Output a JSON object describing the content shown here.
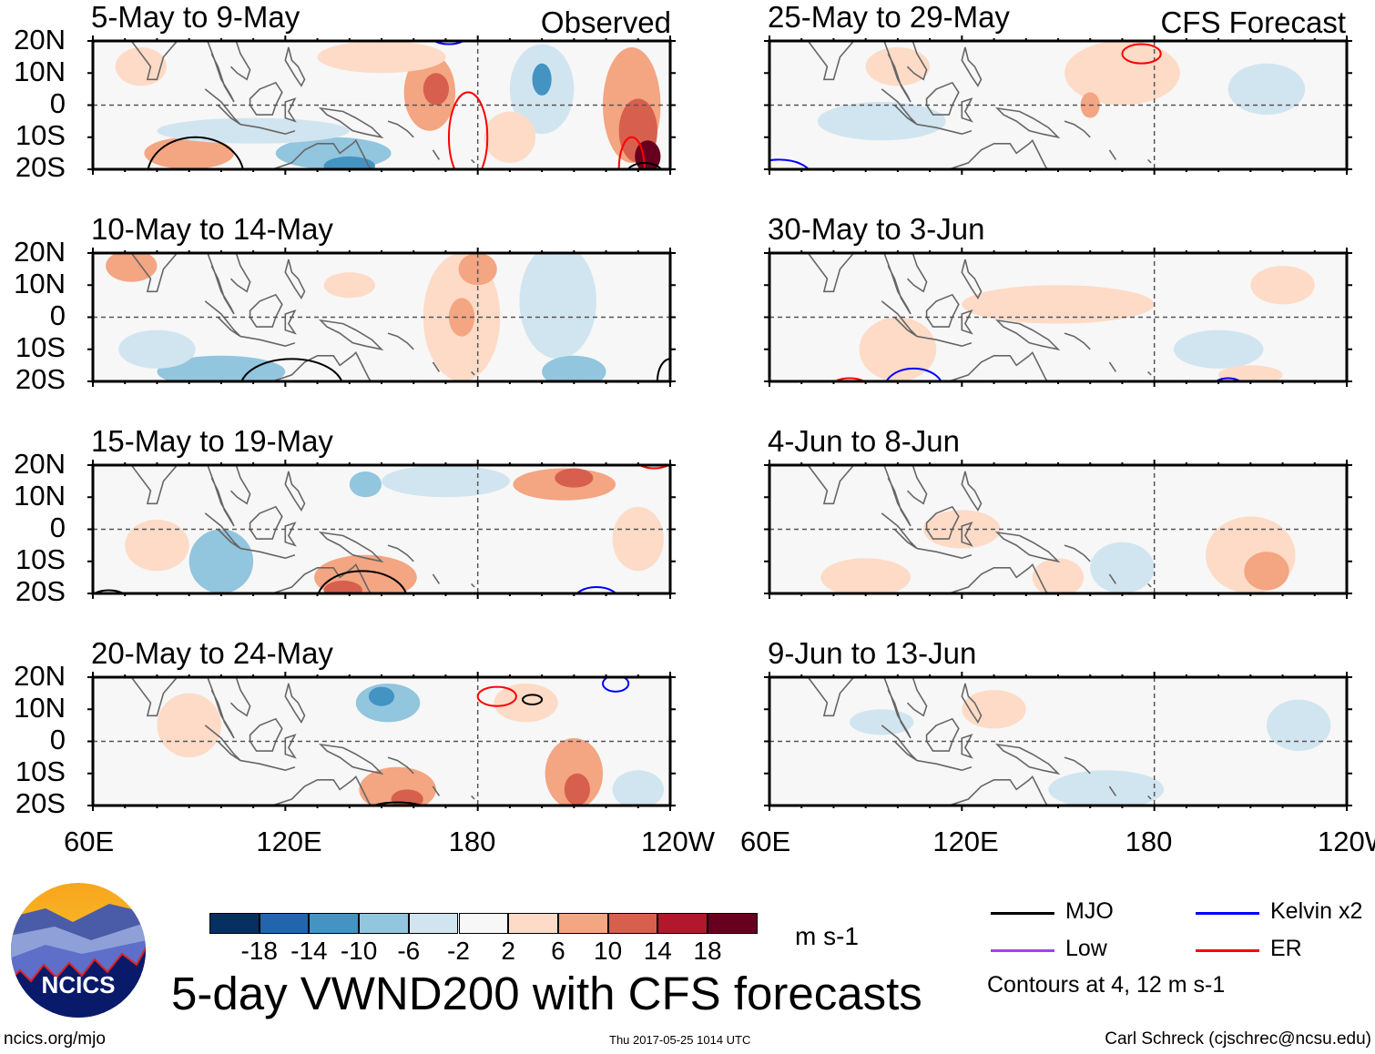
{
  "figure": {
    "title": "5-day VWND200 with CFS forecasts",
    "units": "m s-1",
    "left_tag": "Observed",
    "right_tag": "CFS Forecast",
    "site": "ncics.org/mjo",
    "timestamp": "Thu 2017-05-25 1014 UTC",
    "author": "Carl Schreck (cjschrec@ncsu.edu)",
    "logo_text": "NCICS"
  },
  "axes": {
    "lat_labels": [
      "20N",
      "10N",
      "0",
      "10S",
      "20S"
    ],
    "lon_labels": [
      "60E",
      "120E",
      "180",
      "120W"
    ],
    "lon_range": [
      60,
      240
    ],
    "lat_range": [
      -20,
      20
    ]
  },
  "colorbar": {
    "colors": [
      "#053061",
      "#2166ac",
      "#4393c3",
      "#92c5de",
      "#d1e5f0",
      "#f7f7f7",
      "#fddbc7",
      "#f4a582",
      "#d6604d",
      "#b2182b",
      "#67001f"
    ],
    "labels": [
      "-18",
      "-14",
      "-10",
      "-6",
      "-2",
      "2",
      "6",
      "10",
      "14",
      "18"
    ],
    "bounds": [
      -18,
      -14,
      -10,
      -6,
      -2,
      2,
      6,
      10,
      14,
      18
    ]
  },
  "legend": {
    "items": [
      {
        "label": "MJO",
        "color": "#000000"
      },
      {
        "label": "Kelvin x2",
        "color": "#0000ff"
      },
      {
        "label": "Low",
        "color": "#a040ff"
      },
      {
        "label": "ER",
        "color": "#ff0000"
      }
    ],
    "note": "Contours at 4, 12 m s-1"
  },
  "chart_data": {
    "type": "heatmap",
    "variable": "200 hPa meridional wind anomaly",
    "panels": [
      {
        "title": "5-May to 9-May",
        "column": "observed",
        "anomalies": [
          {
            "lon": 75,
            "lat": 12,
            "dlon": 8,
            "dlat": 6,
            "value": 3
          },
          {
            "lon": 90,
            "lat": -15,
            "dlon": 14,
            "dlat": 5,
            "value": 7
          },
          {
            "lon": 135,
            "lat": -15,
            "dlon": 18,
            "dlat": 5,
            "value": -7
          },
          {
            "lon": 140,
            "lat": -19,
            "dlon": 8,
            "dlat": 3,
            "value": -11
          },
          {
            "lon": 110,
            "lat": -8,
            "dlon": 30,
            "dlat": 4,
            "value": -3
          },
          {
            "lon": 165,
            "lat": 4,
            "dlon": 8,
            "dlat": 12,
            "value": 7
          },
          {
            "lon": 167,
            "lat": 5,
            "dlon": 4,
            "dlat": 5,
            "value": 11
          },
          {
            "lon": 150,
            "lat": 15,
            "dlon": 20,
            "dlat": 5,
            "value": 3
          },
          {
            "lon": 200,
            "lat": 5,
            "dlon": 10,
            "dlat": 14,
            "value": -5
          },
          {
            "lon": 200,
            "lat": 8,
            "dlon": 3,
            "dlat": 5,
            "value": -11
          },
          {
            "lon": 228,
            "lat": 0,
            "dlon": 9,
            "dlat": 18,
            "value": 7
          },
          {
            "lon": 230,
            "lat": -8,
            "dlon": 6,
            "dlat": 10,
            "value": 11
          },
          {
            "lon": 233,
            "lat": -16,
            "dlon": 4,
            "dlat": 5,
            "value": 20
          },
          {
            "lon": 190,
            "lat": -10,
            "dlon": 8,
            "dlat": 8,
            "value": 3
          }
        ],
        "contours": [
          {
            "type": "MJO",
            "lon": 92,
            "lat": -22,
            "dlon": 15,
            "dlat": 12
          },
          {
            "type": "Kelvin",
            "lon": 171,
            "lat": 22,
            "dlon": 6,
            "dlat": 3
          },
          {
            "type": "ER",
            "lon": 177,
            "lat": -10,
            "dlon": 6,
            "dlat": 14
          },
          {
            "type": "ER",
            "lon": 228,
            "lat": -20,
            "dlon": 4,
            "dlat": 10
          },
          {
            "type": "MJO",
            "lon": 232,
            "lat": -22,
            "dlon": 6,
            "dlat": 4
          }
        ]
      },
      {
        "title": "10-May to 14-May",
        "column": "observed",
        "anomalies": [
          {
            "lon": 72,
            "lat": 16,
            "dlon": 8,
            "dlat": 5,
            "value": 8
          },
          {
            "lon": 100,
            "lat": -17,
            "dlon": 20,
            "dlat": 5,
            "value": -7
          },
          {
            "lon": 80,
            "lat": -10,
            "dlon": 12,
            "dlat": 6,
            "value": -3
          },
          {
            "lon": 175,
            "lat": 0,
            "dlon": 12,
            "dlat": 20,
            "value": 3
          },
          {
            "lon": 175,
            "lat": 0,
            "dlon": 4,
            "dlat": 6,
            "value": 7
          },
          {
            "lon": 180,
            "lat": 15,
            "dlon": 6,
            "dlat": 5,
            "value": 7
          },
          {
            "lon": 205,
            "lat": 5,
            "dlon": 12,
            "dlat": 18,
            "value": -4
          },
          {
            "lon": 210,
            "lat": -17,
            "dlon": 10,
            "dlat": 5,
            "value": -8
          },
          {
            "lon": 140,
            "lat": 10,
            "dlon": 8,
            "dlat": 4,
            "value": 4
          }
        ],
        "contours": [
          {
            "type": "MJO",
            "lon": 122,
            "lat": -22,
            "dlon": 16,
            "dlat": 9
          },
          {
            "type": "MJO",
            "lon": 240,
            "lat": -20,
            "dlon": 4,
            "dlat": 7
          }
        ]
      },
      {
        "title": "15-May to 19-May",
        "column": "observed",
        "anomalies": [
          {
            "lon": 145,
            "lat": -15,
            "dlon": 16,
            "dlat": 7,
            "value": 7
          },
          {
            "lon": 138,
            "lat": -19,
            "dlon": 6,
            "dlat": 3,
            "value": 11
          },
          {
            "lon": 100,
            "lat": -10,
            "dlon": 10,
            "dlat": 10,
            "value": -6
          },
          {
            "lon": 145,
            "lat": 14,
            "dlon": 5,
            "dlat": 4,
            "value": -9
          },
          {
            "lon": 170,
            "lat": 15,
            "dlon": 20,
            "dlat": 5,
            "value": -3
          },
          {
            "lon": 207,
            "lat": 14,
            "dlon": 16,
            "dlat": 5,
            "value": 7
          },
          {
            "lon": 210,
            "lat": 16,
            "dlon": 6,
            "dlat": 3,
            "value": 11
          },
          {
            "lon": 230,
            "lat": -3,
            "dlon": 8,
            "dlat": 10,
            "value": 4
          },
          {
            "lon": 80,
            "lat": -5,
            "dlon": 10,
            "dlat": 8,
            "value": 3
          }
        ],
        "contours": [
          {
            "type": "MJO",
            "lon": 144,
            "lat": -22,
            "dlon": 14,
            "dlat": 9
          },
          {
            "type": "Kelvin",
            "lon": 217,
            "lat": -22,
            "dlon": 7,
            "dlat": 4
          },
          {
            "type": "ER",
            "lon": 235,
            "lat": 21,
            "dlon": 5,
            "dlat": 2
          },
          {
            "type": "MJO",
            "lon": 65,
            "lat": -22,
            "dlon": 6,
            "dlat": 3
          }
        ]
      },
      {
        "title": "20-May to 24-May",
        "column": "observed",
        "anomalies": [
          {
            "lon": 155,
            "lat": -15,
            "dlon": 12,
            "dlat": 7,
            "value": 7
          },
          {
            "lon": 158,
            "lat": -18,
            "dlon": 5,
            "dlat": 3,
            "value": 11
          },
          {
            "lon": 152,
            "lat": 12,
            "dlon": 10,
            "dlat": 6,
            "value": -6
          },
          {
            "lon": 150,
            "lat": 14,
            "dlon": 4,
            "dlat": 3,
            "value": -11
          },
          {
            "lon": 210,
            "lat": -10,
            "dlon": 9,
            "dlat": 11,
            "value": 7
          },
          {
            "lon": 211,
            "lat": -15,
            "dlon": 4,
            "dlat": 5,
            "value": 12
          },
          {
            "lon": 195,
            "lat": 12,
            "dlon": 10,
            "dlat": 6,
            "value": 3
          },
          {
            "lon": 90,
            "lat": 5,
            "dlon": 10,
            "dlat": 10,
            "value": 3
          },
          {
            "lon": 230,
            "lat": -15,
            "dlon": 8,
            "dlat": 6,
            "value": -4
          }
        ],
        "contours": [
          {
            "type": "ER",
            "lon": 186,
            "lat": 14,
            "dlon": 6,
            "dlat": 3
          },
          {
            "type": "MJO",
            "lon": 197,
            "lat": 13,
            "dlon": 3,
            "dlat": 1.5
          },
          {
            "type": "Kelvin",
            "lon": 223,
            "lat": 18,
            "dlon": 4,
            "dlat": 2.5
          },
          {
            "type": "MJO",
            "lon": 155,
            "lat": -22,
            "dlon": 10,
            "dlat": 3
          }
        ]
      },
      {
        "title": "25-May to 29-May",
        "column": "forecast",
        "anomalies": [
          {
            "lon": 170,
            "lat": 10,
            "dlon": 18,
            "dlat": 10,
            "value": 3
          },
          {
            "lon": 160,
            "lat": 0,
            "dlon": 3,
            "dlat": 4,
            "value": 7
          },
          {
            "lon": 95,
            "lat": -5,
            "dlon": 20,
            "dlat": 6,
            "value": -3
          },
          {
            "lon": 215,
            "lat": 5,
            "dlon": 12,
            "dlat": 8,
            "value": -3
          },
          {
            "lon": 100,
            "lat": 12,
            "dlon": 10,
            "dlat": 6,
            "value": 3
          }
        ],
        "contours": [
          {
            "type": "ER",
            "lon": 176,
            "lat": 16,
            "dlon": 6,
            "dlat": 3
          },
          {
            "type": "Kelvin",
            "lon": 63,
            "lat": -22,
            "dlon": 10,
            "dlat": 5
          },
          {
            "type": "ER",
            "lon": 100,
            "lat": -22,
            "dlon": 4,
            "dlat": 2
          }
        ]
      },
      {
        "title": "30-May to 3-Jun",
        "column": "forecast",
        "anomalies": [
          {
            "lon": 100,
            "lat": -10,
            "dlon": 12,
            "dlat": 10,
            "value": 3
          },
          {
            "lon": 150,
            "lat": 4,
            "dlon": 30,
            "dlat": 6,
            "value": 3
          },
          {
            "lon": 200,
            "lat": -10,
            "dlon": 14,
            "dlat": 6,
            "value": -3
          },
          {
            "lon": 220,
            "lat": 10,
            "dlon": 10,
            "dlat": 6,
            "value": 3
          },
          {
            "lon": 210,
            "lat": -18,
            "dlon": 10,
            "dlat": 3,
            "value": 3
          }
        ],
        "contours": [
          {
            "type": "ER",
            "lon": 85,
            "lat": -22,
            "dlon": 6,
            "dlat": 3
          },
          {
            "type": "Kelvin",
            "lon": 105,
            "lat": -22,
            "dlon": 9,
            "dlat": 6
          },
          {
            "type": "Kelvin",
            "lon": 203,
            "lat": -22,
            "dlon": 5,
            "dlat": 3
          }
        ]
      },
      {
        "title": "4-Jun to 8-Jun",
        "column": "forecast",
        "anomalies": [
          {
            "lon": 210,
            "lat": -8,
            "dlon": 14,
            "dlat": 12,
            "value": 5
          },
          {
            "lon": 215,
            "lat": -13,
            "dlon": 7,
            "dlat": 6,
            "value": 8
          },
          {
            "lon": 120,
            "lat": 0,
            "dlon": 12,
            "dlat": 6,
            "value": 3
          },
          {
            "lon": 150,
            "lat": -15,
            "dlon": 8,
            "dlat": 6,
            "value": 3
          },
          {
            "lon": 90,
            "lat": -15,
            "dlon": 14,
            "dlat": 6,
            "value": 3
          },
          {
            "lon": 170,
            "lat": -12,
            "dlon": 10,
            "dlat": 8,
            "value": -3
          }
        ],
        "contours": [
          {
            "type": "Kelvin",
            "lon": 155,
            "lat": -22,
            "dlon": 5,
            "dlat": 2
          }
        ]
      },
      {
        "title": "9-Jun to 13-Jun",
        "column": "forecast",
        "anomalies": [
          {
            "lon": 95,
            "lat": 6,
            "dlon": 10,
            "dlat": 4,
            "value": -3
          },
          {
            "lon": 165,
            "lat": -15,
            "dlon": 18,
            "dlat": 6,
            "value": -3
          },
          {
            "lon": 225,
            "lat": 5,
            "dlon": 10,
            "dlat": 8,
            "value": -3
          },
          {
            "lon": 130,
            "lat": 10,
            "dlon": 10,
            "dlat": 6,
            "value": 3
          }
        ],
        "contours": []
      }
    ]
  }
}
